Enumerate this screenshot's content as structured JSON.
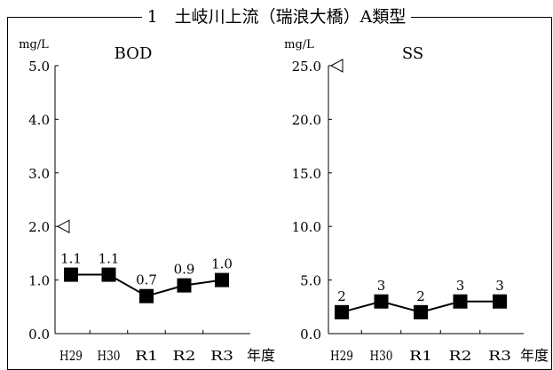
{
  "page_title": "1　土岐川上流（瑞浪大橋）A類型",
  "chart_data": [
    {
      "type": "line",
      "title": "BOD",
      "ylabel": "mg/L",
      "xlabel": "年度",
      "categories": [
        "H29",
        "H30",
        "R1",
        "R2",
        "R3"
      ],
      "values": [
        1.1,
        1.1,
        0.7,
        0.9,
        1.0
      ],
      "value_labels": [
        "1.1",
        "1.1",
        "0.7",
        "0.9",
        "1.0"
      ],
      "ylim": [
        0,
        5
      ],
      "yticks": [
        0,
        1,
        2,
        3,
        4,
        5
      ],
      "ytick_labels": [
        "0.0",
        "1.0",
        "2.0",
        "3.0",
        "4.0",
        "5.0"
      ],
      "standard_value": 2.0,
      "standard_marker": "left-pointing-triangle",
      "grid": false,
      "marker": "square",
      "color": "#000000"
    },
    {
      "type": "line",
      "title": "SS",
      "ylabel": "mg/L",
      "xlabel": "年度",
      "categories": [
        "H29",
        "H30",
        "R1",
        "R2",
        "R3"
      ],
      "values": [
        2,
        3,
        2,
        3,
        3
      ],
      "value_labels": [
        "2",
        "3",
        "2",
        "3",
        "3"
      ],
      "ylim": [
        0,
        25
      ],
      "yticks": [
        0,
        5,
        10,
        15,
        20,
        25
      ],
      "ytick_labels": [
        "0.0",
        "5.0",
        "10.0",
        "15.0",
        "20.0",
        "25.0"
      ],
      "standard_value": 25.0,
      "standard_marker": "left-pointing-triangle",
      "grid": false,
      "marker": "square",
      "color": "#000000"
    }
  ]
}
